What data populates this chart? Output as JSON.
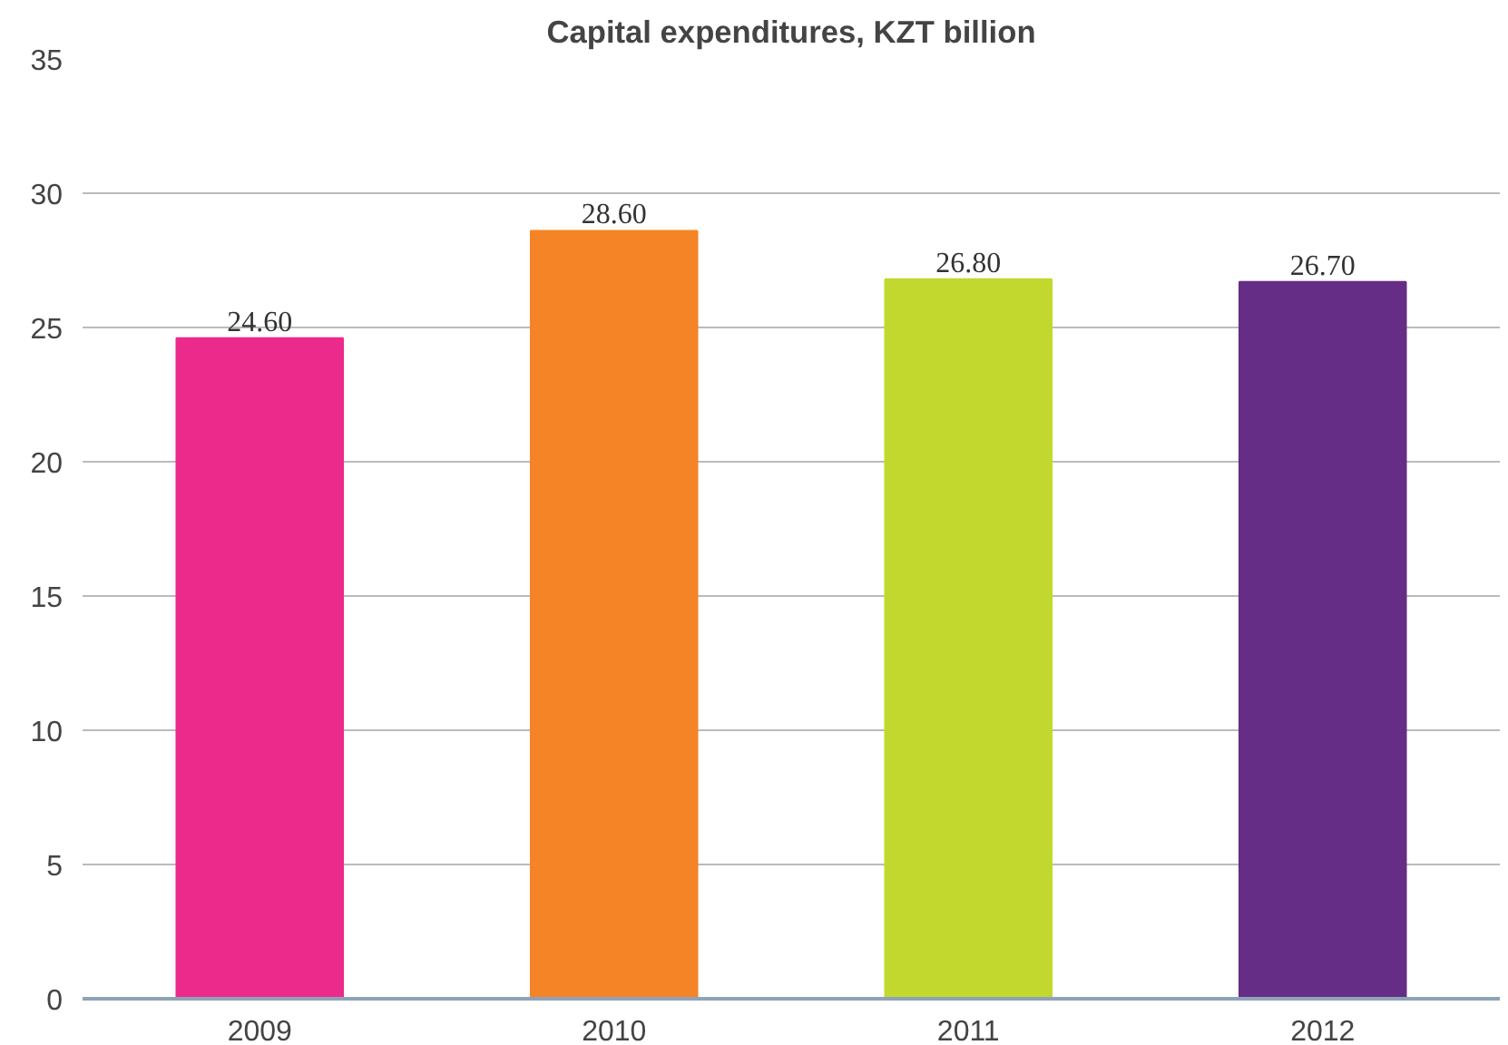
{
  "chart_data": {
    "type": "bar",
    "title": "Capital expenditures, KZT billion",
    "categories": [
      "2009",
      "2010",
      "2011",
      "2012"
    ],
    "values": [
      24.6,
      28.6,
      26.8,
      26.7
    ],
    "colors": [
      "#ec2a8c",
      "#f58426",
      "#c3d82e",
      "#652d86"
    ],
    "value_labels": [
      "24.60",
      "28.60",
      "26.80",
      "26.70"
    ],
    "ylim": [
      0,
      35
    ],
    "yticks": [
      0,
      5,
      10,
      15,
      20,
      25,
      30,
      35
    ],
    "grid": "y"
  }
}
